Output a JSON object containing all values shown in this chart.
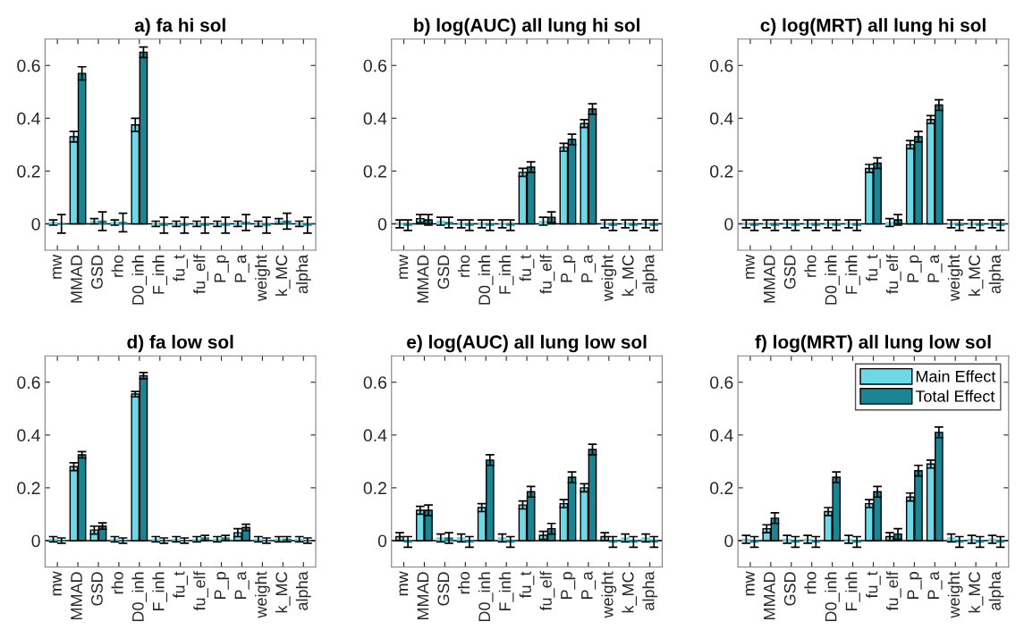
{
  "chart_data": [
    {
      "type": "bar",
      "title": "a) fa hi sol",
      "categories": [
        "mw",
        "MMAD",
        "GSD",
        "rho",
        "D0_inh",
        "F_inh",
        "fu_t",
        "fu_elf",
        "P_p",
        "P_a",
        "weight",
        "k_MC",
        "alpha"
      ],
      "ylim": [
        -0.1,
        0.7
      ],
      "yticks": [
        0,
        0.2,
        0.4,
        0.6
      ],
      "grid": false,
      "ref_lines": [
        {
          "axis": "y",
          "value": 0,
          "color": "#000000"
        }
      ],
      "series": [
        {
          "color": "#6dd8e6",
          "values": [
            0.005,
            0.33,
            0.01,
            0.005,
            0.375,
            0,
            0,
            0,
            0,
            0,
            0,
            0.01,
            0
          ],
          "errors": [
            0.01,
            0.02,
            0.01,
            0.01,
            0.025,
            0.01,
            0.01,
            0.01,
            0.01,
            0.01,
            0.01,
            0.01,
            0.01
          ]
        },
        {
          "color": "#1a8492",
          "values": [
            0,
            0.57,
            0.01,
            0.005,
            0.65,
            -0.005,
            -0.005,
            -0.005,
            -0.005,
            0.005,
            -0.005,
            0.01,
            -0.005
          ],
          "errors": [
            0.035,
            0.025,
            0.035,
            0.035,
            0.02,
            0.03,
            0.03,
            0.03,
            0.03,
            0.03,
            0.03,
            0.03,
            0.03
          ]
        }
      ]
    },
    {
      "type": "bar",
      "title": "b) log(AUC) all lung hi sol",
      "categories": [
        "mw",
        "MMAD",
        "GSD",
        "rho",
        "D0_inh",
        "F_inh",
        "fu_t",
        "fu_elf",
        "P_p",
        "P_a",
        "weight",
        "k_MC",
        "alpha"
      ],
      "ylim": [
        -0.1,
        0.7
      ],
      "yticks": [
        0,
        0.2,
        0.4,
        0.6
      ],
      "grid": false,
      "ref_lines": [
        {
          "axis": "y",
          "value": 0,
          "color": "#000000"
        }
      ],
      "series": [
        {
          "color": "#6dd8e6",
          "values": [
            0,
            0.02,
            0.01,
            0,
            0,
            0,
            0.195,
            0.01,
            0.29,
            0.38,
            0,
            0,
            0
          ],
          "errors": [
            0.015,
            0.015,
            0.015,
            0.015,
            0.015,
            0.015,
            0.015,
            0.015,
            0.015,
            0.015,
            0.015,
            0.015,
            0.015
          ]
        },
        {
          "color": "#1a8492",
          "values": [
            -0.005,
            0.015,
            0.005,
            -0.005,
            -0.005,
            -0.005,
            0.215,
            0.025,
            0.32,
            0.435,
            -0.005,
            -0.005,
            -0.005
          ],
          "errors": [
            0.02,
            0.02,
            0.02,
            0.02,
            0.02,
            0.02,
            0.02,
            0.02,
            0.02,
            0.02,
            0.02,
            0.02,
            0.02
          ]
        }
      ]
    },
    {
      "type": "bar",
      "title": "c) log(MRT) all lung hi sol",
      "categories": [
        "mw",
        "MMAD",
        "GSD",
        "rho",
        "D0_inh",
        "F_inh",
        "fu_t",
        "fu_elf",
        "P_p",
        "P_a",
        "weight",
        "k_MC",
        "alpha"
      ],
      "ylim": [
        -0.1,
        0.7
      ],
      "yticks": [
        0,
        0.2,
        0.4,
        0.6
      ],
      "grid": false,
      "ref_lines": [
        {
          "axis": "y",
          "value": 0,
          "color": "#000000"
        }
      ],
      "series": [
        {
          "color": "#6dd8e6",
          "values": [
            0,
            0,
            0,
            0,
            0,
            0,
            0.21,
            0.005,
            0.3,
            0.395,
            0,
            0,
            0
          ],
          "errors": [
            0.015,
            0.015,
            0.015,
            0.015,
            0.015,
            0.015,
            0.015,
            0.015,
            0.015,
            0.015,
            0.015,
            0.015,
            0.015
          ]
        },
        {
          "color": "#1a8492",
          "values": [
            -0.005,
            -0.005,
            -0.005,
            -0.005,
            -0.005,
            -0.005,
            0.23,
            0.015,
            0.33,
            0.45,
            -0.005,
            -0.005,
            -0.005
          ],
          "errors": [
            0.02,
            0.02,
            0.02,
            0.02,
            0.02,
            0.02,
            0.02,
            0.02,
            0.02,
            0.02,
            0.02,
            0.02,
            0.02
          ]
        }
      ]
    },
    {
      "type": "bar",
      "title": "d) fa low sol",
      "categories": [
        "mw",
        "MMAD",
        "GSD",
        "rho",
        "D0_inh",
        "F_inh",
        "fu_t",
        "fu_elf",
        "P_p",
        "P_a",
        "weight",
        "k_MC",
        "alpha"
      ],
      "ylim": [
        -0.1,
        0.7
      ],
      "yticks": [
        0,
        0.2,
        0.4,
        0.6
      ],
      "grid": false,
      "ref_lines": [
        {
          "axis": "y",
          "value": 0,
          "color": "#000000"
        }
      ],
      "series": [
        {
          "color": "#6dd8e6",
          "values": [
            0.005,
            0.28,
            0.04,
            0.005,
            0.555,
            0.005,
            0.005,
            0.005,
            0.005,
            0.03,
            0.005,
            0.005,
            0.005
          ],
          "errors": [
            0.01,
            0.015,
            0.015,
            0.01,
            0.01,
            0.01,
            0.01,
            0.01,
            0.01,
            0.015,
            0.01,
            0.01,
            0.01
          ]
        },
        {
          "color": "#1a8492",
          "values": [
            0,
            0.325,
            0.055,
            0,
            0.625,
            0,
            0,
            0.01,
            0.01,
            0.05,
            0,
            0.005,
            0
          ],
          "errors": [
            0.01,
            0.012,
            0.012,
            0.01,
            0.012,
            0.01,
            0.01,
            0.01,
            0.01,
            0.012,
            0.01,
            0.01,
            0.01
          ]
        }
      ]
    },
    {
      "type": "bar",
      "title": "e) log(AUC) all lung low sol",
      "categories": [
        "mw",
        "MMAD",
        "GSD",
        "rho",
        "D0_inh",
        "F_inh",
        "fu_t",
        "fu_elf",
        "P_p",
        "P_a",
        "weight",
        "k_MC",
        "alpha"
      ],
      "ylim": [
        -0.1,
        0.7
      ],
      "yticks": [
        0,
        0.2,
        0.4,
        0.6
      ],
      "grid": false,
      "ref_lines": [
        {
          "axis": "y",
          "value": 0,
          "color": "#000000"
        }
      ],
      "series": [
        {
          "color": "#6dd8e6",
          "values": [
            0.015,
            0.115,
            0.01,
            0.01,
            0.125,
            0.01,
            0.135,
            0.02,
            0.14,
            0.2,
            0.015,
            0.01,
            0.01
          ],
          "errors": [
            0.015,
            0.015,
            0.015,
            0.015,
            0.015,
            0.015,
            0.015,
            0.015,
            0.015,
            0.015,
            0.015,
            0.015,
            0.015
          ]
        },
        {
          "color": "#1a8492",
          "values": [
            -0.005,
            0.115,
            0.01,
            -0.005,
            0.305,
            -0.005,
            0.185,
            0.045,
            0.24,
            0.345,
            -0.005,
            -0.005,
            -0.005
          ],
          "errors": [
            0.02,
            0.02,
            0.02,
            0.02,
            0.02,
            0.02,
            0.02,
            0.02,
            0.02,
            0.02,
            0.02,
            0.02,
            0.02
          ]
        }
      ]
    },
    {
      "type": "bar",
      "title": "f) log(MRT) all lung low sol",
      "categories": [
        "mw",
        "MMAD",
        "GSD",
        "rho",
        "D0_inh",
        "F_inh",
        "fu_t",
        "fu_elf",
        "P_p",
        "P_a",
        "weight",
        "k_MC",
        "alpha"
      ],
      "ylim": [
        -0.1,
        0.7
      ],
      "yticks": [
        0,
        0.2,
        0.4,
        0.6
      ],
      "grid": false,
      "legend": "top right",
      "ref_lines": [
        {
          "axis": "y",
          "value": 0,
          "color": "#000000"
        }
      ],
      "series": [
        {
          "name": "Main Effect",
          "color": "#6dd8e6",
          "values": [
            0.005,
            0.045,
            0.005,
            0.005,
            0.11,
            0.005,
            0.14,
            0.015,
            0.165,
            0.29,
            0.01,
            0.005,
            0.005
          ],
          "errors": [
            0.015,
            0.015,
            0.015,
            0.015,
            0.015,
            0.015,
            0.015,
            0.015,
            0.015,
            0.015,
            0.015,
            0.015,
            0.015
          ]
        },
        {
          "name": "Total Effect",
          "color": "#1a8492",
          "values": [
            -0.005,
            0.085,
            -0.005,
            -0.005,
            0.24,
            -0.005,
            0.185,
            0.025,
            0.265,
            0.41,
            -0.005,
            -0.005,
            -0.005
          ],
          "errors": [
            0.02,
            0.02,
            0.02,
            0.02,
            0.02,
            0.02,
            0.02,
            0.02,
            0.02,
            0.02,
            0.02,
            0.02,
            0.02
          ]
        }
      ]
    }
  ]
}
